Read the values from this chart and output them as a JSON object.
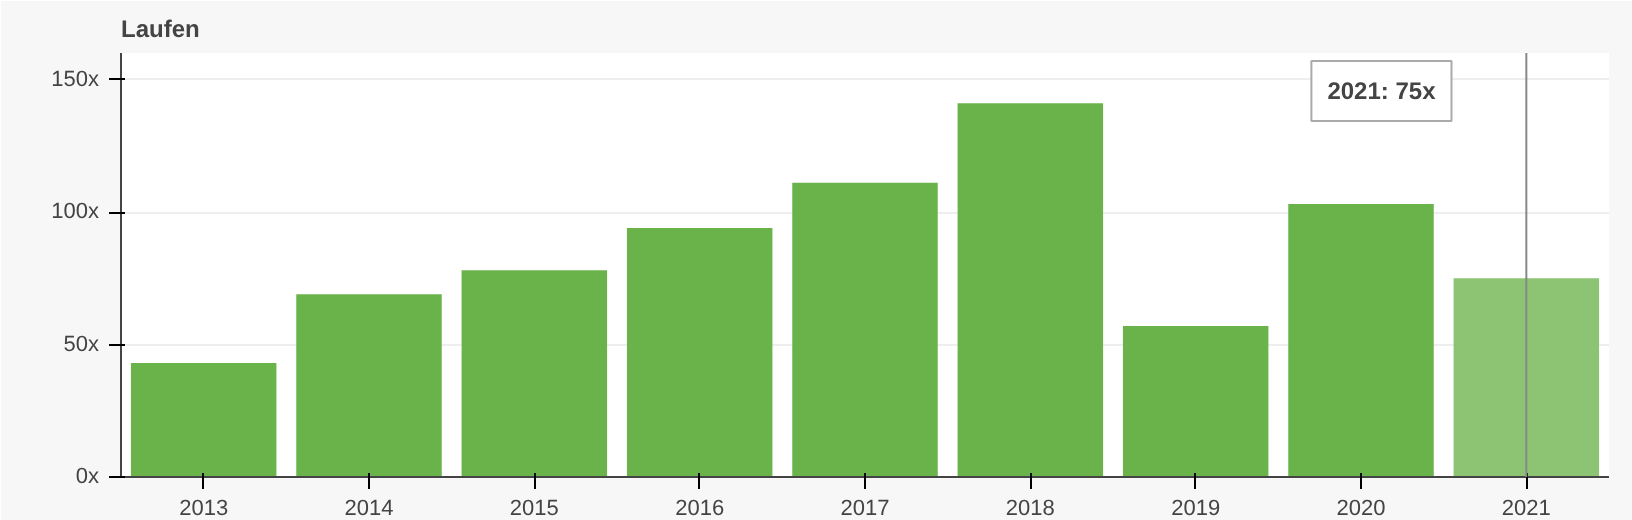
{
  "chart_data": {
    "type": "bar",
    "title": "Laufen",
    "categories": [
      "2013",
      "2014",
      "2015",
      "2016",
      "2017",
      "2018",
      "2019",
      "2020",
      "2021"
    ],
    "values": [
      43,
      69,
      78,
      94,
      111,
      141,
      57,
      103,
      75
    ],
    "colors": [
      "#6ab34a",
      "#6ab34a",
      "#6ab34a",
      "#6ab34a",
      "#6ab34a",
      "#6ab34a",
      "#6ab34a",
      "#6ab34a",
      "#8cc474"
    ],
    "ylim": [
      0,
      160
    ],
    "yticks": [
      {
        "value": 0,
        "label": "0x"
      },
      {
        "value": 50,
        "label": "50x"
      },
      {
        "value": 100,
        "label": "100x"
      },
      {
        "value": 150,
        "label": "150x"
      }
    ],
    "grid": "y",
    "ref_lines": [
      {
        "axis": "x",
        "value": "2021",
        "color": "#888888"
      }
    ],
    "annotations": [
      "2021: 75x"
    ]
  }
}
